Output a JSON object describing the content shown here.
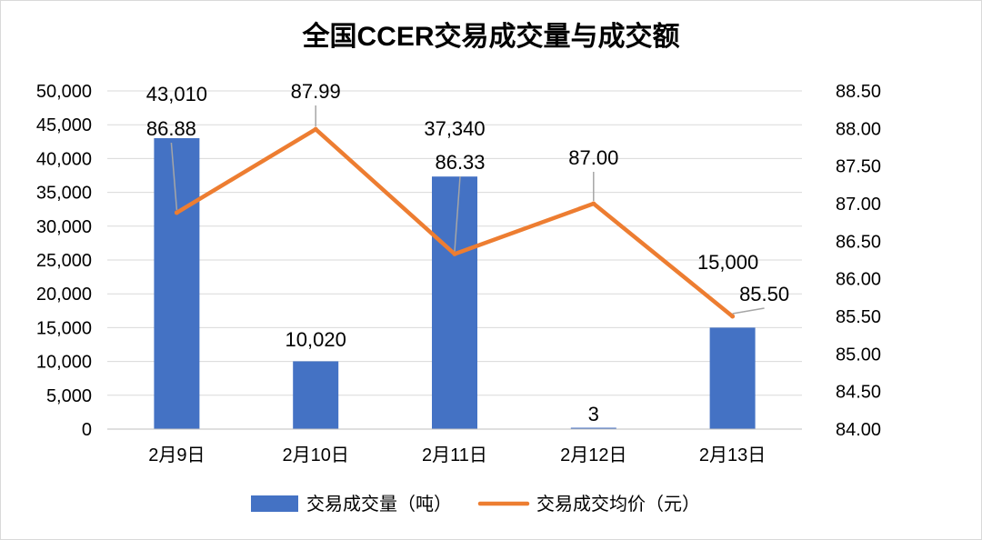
{
  "chart_data": {
    "type": "bar+line",
    "title": "全国CCER交易成交量与成交额",
    "categories": [
      "2月9日",
      "2月10日",
      "2月11日",
      "2月12日",
      "2月13日"
    ],
    "series": [
      {
        "name": "交易成交量（吨）",
        "type": "bar",
        "axis": "left",
        "color": "#4472C4",
        "values": [
          43010,
          10020,
          37340,
          3,
          15000
        ],
        "labels": [
          "43,010",
          "10,020",
          "37,340",
          "3",
          "15,000"
        ]
      },
      {
        "name": "交易成交均价（元）",
        "type": "line",
        "axis": "right",
        "color": "#ED7D31",
        "values": [
          86.88,
          87.99,
          86.33,
          87.0,
          85.5
        ],
        "labels": [
          "86.88",
          "87.99",
          "86.33",
          "87.00",
          "85.50"
        ]
      }
    ],
    "y_left": {
      "min": 0,
      "max": 50000,
      "ticks": [
        "0",
        "5,000",
        "10,000",
        "15,000",
        "20,000",
        "25,000",
        "30,000",
        "35,000",
        "40,000",
        "45,000",
        "50,000"
      ]
    },
    "y_right": {
      "min": 84,
      "max": 88.5,
      "ticks": [
        "84.00",
        "84.50",
        "85.00",
        "85.50",
        "86.00",
        "86.50",
        "87.00",
        "87.50",
        "88.00",
        "88.50"
      ]
    },
    "grid": true,
    "legend_position": "bottom"
  }
}
